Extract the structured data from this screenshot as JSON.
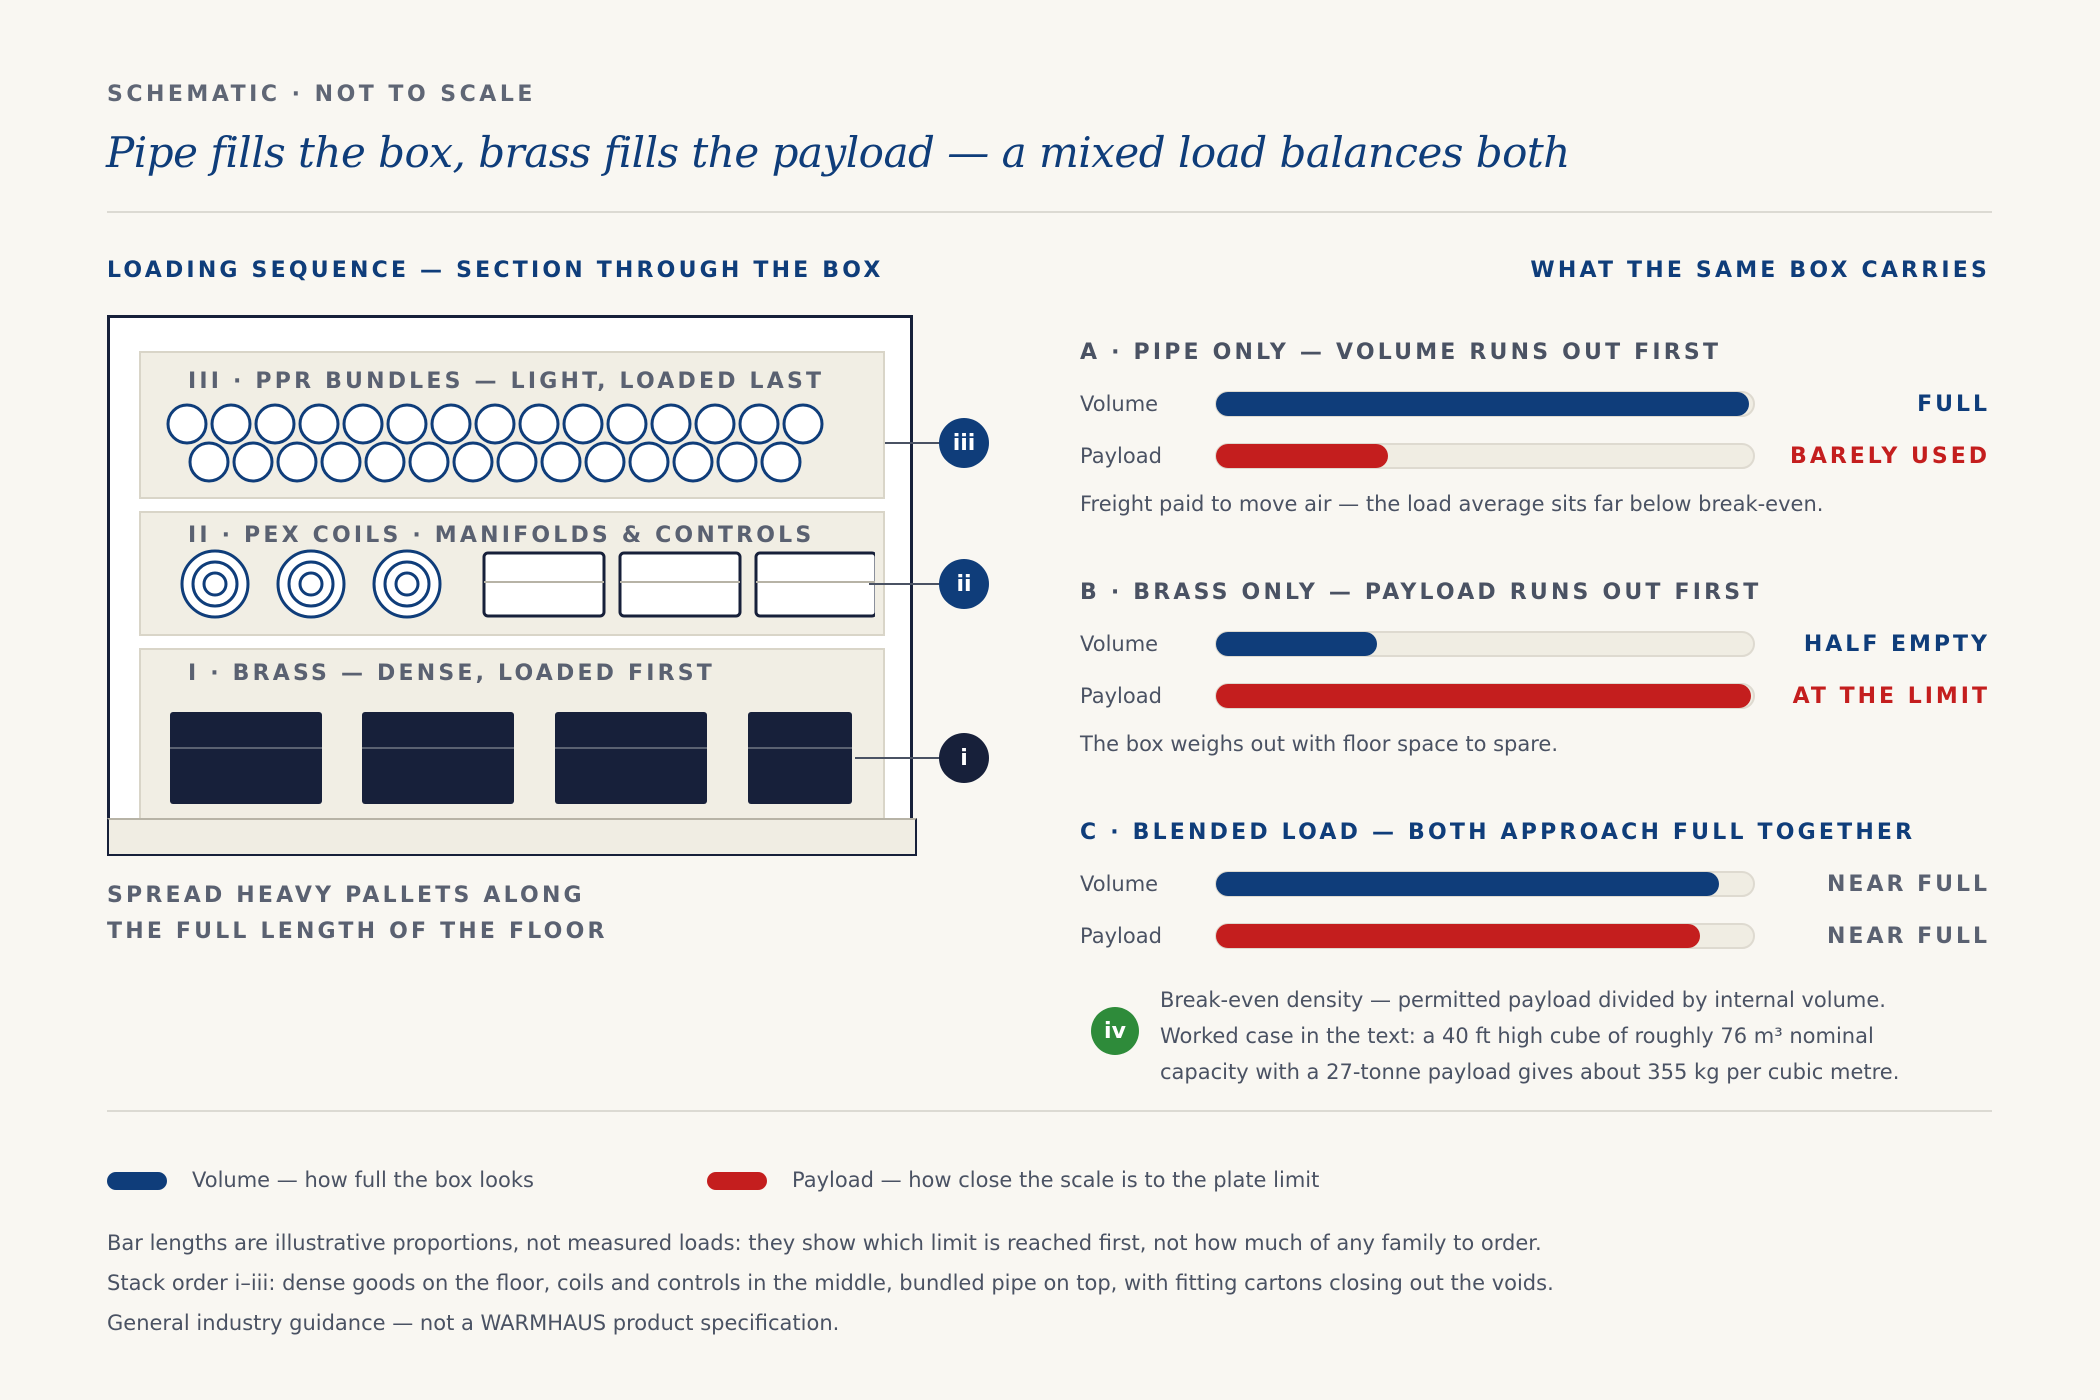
{
  "eyebrow": "SCHEMATIC · NOT TO SCALE",
  "title": "Pipe fills the box, brass fills the payload — a mixed load balances both",
  "left_heading": "LOADING SEQUENCE — SECTION THROUGH THE BOX",
  "right_heading": "WHAT THE SAME BOX CARRIES",
  "tiers": {
    "iii": {
      "label": "III · PPR BUNDLES — LIGHT, LOADED LAST",
      "badge": "iii",
      "top_row_count": 15,
      "bottom_row_count": 14
    },
    "ii": {
      "label": "II · PEX COILS · MANIFOLDS & CONTROLS",
      "badge": "ii",
      "coil_count": 3,
      "carton_count": 3
    },
    "i": {
      "label": "I · BRASS — DENSE, LOADED FIRST",
      "badge": "i",
      "pallet_count": 4
    }
  },
  "left_caption_line1": "SPREAD HEAVY PALLETS ALONG",
  "left_caption_line2": "THE FULL LENGTH OF THE FLOOR",
  "row_labels": {
    "volume": "Volume",
    "payload": "Payload"
  },
  "scenarios": {
    "a": {
      "heading": "A · PIPE ONLY — VOLUME RUNS OUT FIRST",
      "volume_fill": 0.99,
      "volume_status": "FULL",
      "payload_fill": 0.32,
      "payload_status": "BARELY USED",
      "note": "Freight paid to move air — the load average sits far below break-even."
    },
    "b": {
      "heading": "B · BRASS ONLY — PAYLOAD RUNS OUT FIRST",
      "volume_fill": 0.3,
      "volume_status": "HALF EMPTY",
      "payload_fill": 0.995,
      "payload_status": "AT THE LIMIT",
      "note": "The box weighs out with floor space to spare."
    },
    "c": {
      "heading": "C · BLENDED LOAD — BOTH APPROACH FULL TOGETHER",
      "volume_fill": 0.935,
      "volume_status": "NEAR FULL",
      "payload_fill": 0.9,
      "payload_status": "NEAR FULL"
    }
  },
  "breakeven": {
    "badge": "iv",
    "line1": "Break-even density — permitted payload divided by internal volume.",
    "line2": "Worked case in the text: a 40 ft high cube of roughly 76 m³ nominal",
    "line3": "capacity with a 27-tonne payload gives about 355 kg per cubic metre."
  },
  "legend": {
    "volume": "Volume — how full the box looks",
    "payload": "Payload — how close the scale is to the plate limit"
  },
  "footnotes": [
    "Bar lengths are illustrative proportions, not measured loads: they show which limit is reached first, not how much of any family to order.",
    "Stack order i–iii: dense goods on the floor, coils and controls in the middle, bundled pipe on top, with fitting cartons closing out the voids.",
    "General industry guidance — not a WARMHAUS product specification."
  ],
  "colors": {
    "volume": "#0f3d7a",
    "payload": "#c41e1e",
    "navy": "#17203a",
    "green": "#2e8b3a"
  }
}
